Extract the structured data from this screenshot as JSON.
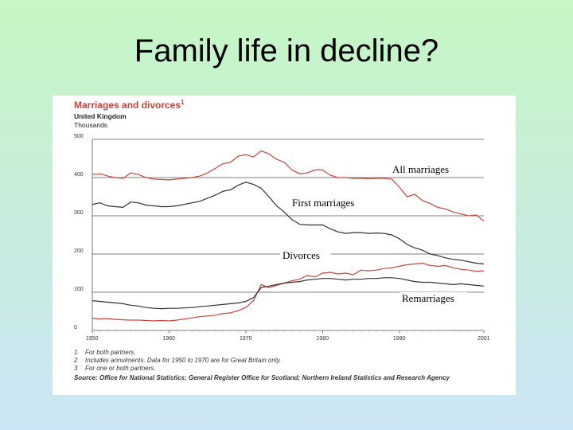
{
  "slide": {
    "title": "Family life in decline?"
  },
  "chart_data": {
    "type": "line",
    "title": "Marriages and divorces",
    "title_footnote": "1",
    "region": "United Kingdom",
    "units": "Thousands",
    "xlim": [
      1950,
      2001
    ],
    "ylim": [
      0,
      500
    ],
    "x_ticks": [
      "1950",
      "1960",
      "1970",
      "1980",
      "1990",
      "2001"
    ],
    "y_ticks": [
      "0",
      "100",
      "200",
      "300",
      "400",
      "500"
    ],
    "grid": true,
    "series": [
      {
        "name": "All marriages",
        "color": "#c8463c",
        "x": [
          1950,
          1951,
          1952,
          1953,
          1954,
          1955,
          1956,
          1957,
          1958,
          1959,
          1960,
          1961,
          1962,
          1963,
          1964,
          1965,
          1966,
          1967,
          1968,
          1969,
          1970,
          1971,
          1972,
          1973,
          1974,
          1975,
          1976,
          1977,
          1978,
          1979,
          1980,
          1981,
          1982,
          1983,
          1984,
          1985,
          1986,
          1987,
          1988,
          1989,
          1990,
          1991,
          1992,
          1993,
          1994,
          1995,
          1996,
          1997,
          1998,
          1999,
          2000,
          2001
        ],
        "y": [
          408,
          410,
          404,
          400,
          398,
          412,
          408,
          400,
          396,
          395,
          394,
          396,
          398,
          400,
          404,
          412,
          424,
          436,
          440,
          456,
          460,
          454,
          470,
          462,
          448,
          440,
          420,
          410,
          412,
          420,
          420,
          406,
          400,
          400,
          398,
          398,
          397,
          398,
          398,
          396,
          375,
          350,
          356,
          340,
          332,
          322,
          318,
          310,
          305,
          300,
          302,
          286
        ]
      },
      {
        "name": "First marriages",
        "color": "#333333",
        "x": [
          1950,
          1951,
          1952,
          1953,
          1954,
          1955,
          1956,
          1957,
          1958,
          1959,
          1960,
          1961,
          1962,
          1963,
          1964,
          1965,
          1966,
          1967,
          1968,
          1969,
          1970,
          1971,
          1972,
          1973,
          1974,
          1975,
          1976,
          1977,
          1978,
          1979,
          1980,
          1981,
          1982,
          1983,
          1984,
          1985,
          1986,
          1987,
          1988,
          1989,
          1990,
          1991,
          1992,
          1993,
          1994,
          1995,
          1996,
          1997,
          1998,
          1999,
          2000,
          2001
        ],
        "y": [
          330,
          334,
          326,
          324,
          322,
          336,
          334,
          328,
          326,
          324,
          324,
          326,
          330,
          334,
          338,
          346,
          354,
          364,
          368,
          380,
          388,
          382,
          372,
          350,
          326,
          310,
          290,
          278,
          276,
          276,
          276,
          266,
          258,
          254,
          256,
          256,
          254,
          255,
          254,
          250,
          240,
          225,
          216,
          210,
          200,
          196,
          190,
          186,
          184,
          180,
          176,
          174
        ]
      },
      {
        "name": "Divorces",
        "color": "#c8463c",
        "x": [
          1950,
          1951,
          1952,
          1953,
          1954,
          1955,
          1956,
          1957,
          1958,
          1959,
          1960,
          1961,
          1962,
          1963,
          1964,
          1965,
          1966,
          1967,
          1968,
          1969,
          1970,
          1971,
          1972,
          1973,
          1974,
          1975,
          1976,
          1977,
          1978,
          1979,
          1980,
          1981,
          1982,
          1983,
          1984,
          1985,
          1986,
          1987,
          1988,
          1989,
          1990,
          1991,
          1992,
          1993,
          1994,
          1995,
          1996,
          1997,
          1998,
          1999,
          2000,
          2001
        ],
        "y": [
          32,
          30,
          31,
          29,
          28,
          27,
          27,
          26,
          25,
          26,
          25,
          27,
          30,
          33,
          36,
          38,
          40,
          44,
          46,
          52,
          60,
          78,
          120,
          112,
          118,
          124,
          130,
          134,
          144,
          140,
          150,
          152,
          148,
          150,
          146,
          158,
          156,
          158,
          162,
          164,
          168,
          172,
          174,
          176,
          170,
          168,
          170,
          164,
          160,
          158,
          155,
          156
        ]
      },
      {
        "name": "Remarriages",
        "color": "#333333",
        "x": [
          1950,
          1951,
          1952,
          1953,
          1954,
          1955,
          1956,
          1957,
          1958,
          1959,
          1960,
          1961,
          1962,
          1963,
          1964,
          1965,
          1966,
          1967,
          1968,
          1969,
          1970,
          1971,
          1972,
          1973,
          1974,
          1975,
          1976,
          1977,
          1978,
          1979,
          1980,
          1981,
          1982,
          1983,
          1984,
          1985,
          1986,
          1987,
          1988,
          1989,
          1990,
          1991,
          1992,
          1993,
          1994,
          1995,
          1996,
          1997,
          1998,
          1999,
          2000,
          2001
        ],
        "y": [
          78,
          76,
          74,
          72,
          70,
          66,
          64,
          60,
          58,
          57,
          58,
          58,
          59,
          60,
          62,
          64,
          66,
          68,
          70,
          72,
          76,
          86,
          112,
          116,
          120,
          124,
          126,
          128,
          132,
          134,
          136,
          136,
          134,
          132,
          134,
          134,
          136,
          136,
          138,
          138,
          136,
          132,
          128,
          126,
          126,
          124,
          122,
          120,
          122,
          120,
          118,
          116
        ]
      }
    ],
    "annotations": [
      {
        "text": "All marriages",
        "series": "All marriages"
      },
      {
        "text": "First marriages",
        "series": "First marriages"
      },
      {
        "text": "Divorces",
        "series": "Divorces"
      },
      {
        "text": "Remarriages",
        "series": "Remarriages"
      }
    ]
  },
  "footnotes": [
    {
      "num": "1",
      "text": "For both partners."
    },
    {
      "num": "2",
      "text": "Includes annulments. Data for 1950 to 1970 are for Great Britain only."
    },
    {
      "num": "3",
      "text": "For one or both partners."
    }
  ],
  "source": "Source: Office for National Statistics; General Register Office for Scotland; Northern Ireland Statistics and Research Agency"
}
